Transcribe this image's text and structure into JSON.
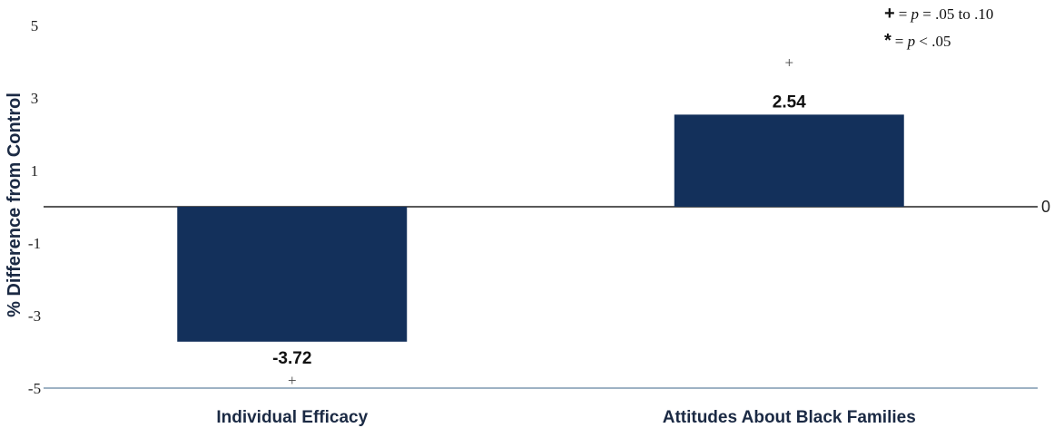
{
  "chart_data": {
    "type": "bar",
    "title": "",
    "xlabel": "",
    "ylabel": "% Difference from Control",
    "ylim": [
      -5,
      5
    ],
    "yticks": [
      "5",
      "3",
      "1",
      "-1",
      "-3",
      "-5"
    ],
    "zero_label": "0",
    "grid": false,
    "categories": [
      "Individual Efficacy",
      "Attitudes About Black Families"
    ],
    "values": [
      -3.72,
      2.54
    ],
    "data_labels": [
      "-3.72",
      "2.54"
    ],
    "significance_markers": [
      "+",
      "+"
    ],
    "bar_color": "#13305b"
  },
  "legend": {
    "items": [
      {
        "symbol": "+",
        "text_prefix": "= ",
        "text_italic": "p",
        "text_suffix": " = .05 to .10"
      },
      {
        "symbol": "*",
        "text_prefix": "= ",
        "text_italic": "p",
        "text_suffix": " < .05"
      }
    ]
  }
}
